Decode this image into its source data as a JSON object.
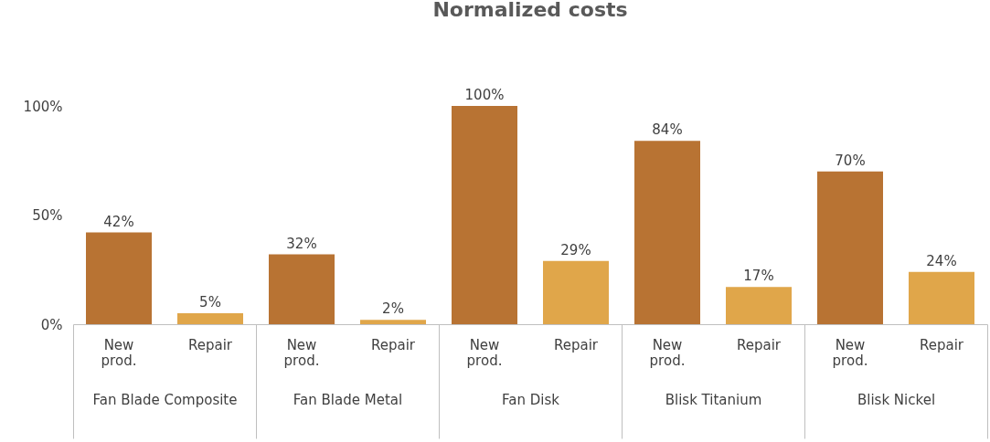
{
  "chart_data": {
    "type": "bar",
    "title": "Normalized costs",
    "categories": [
      "Fan Blade Composite",
      "Fan Blade Metal",
      "Fan Disk",
      "Blisk Titanium",
      "Blisk Nickel"
    ],
    "series": [
      {
        "name": "New prod.",
        "color": "#b87333",
        "values": [
          42,
          32,
          100,
          84,
          70
        ],
        "value_labels": [
          "42%",
          "32%",
          "100%",
          "84%",
          "70%"
        ]
      },
      {
        "name": "Repair",
        "color": "#e0a64a",
        "values": [
          5,
          2,
          29,
          17,
          24
        ],
        "value_labels": [
          "5%",
          "2%",
          "29%",
          "17%",
          "24%"
        ]
      }
    ],
    "ylim": [
      0,
      100
    ],
    "yticks": [
      {
        "value": 0,
        "label": "0%"
      },
      {
        "value": 50,
        "label": "50%"
      },
      {
        "value": 100,
        "label": "100%"
      }
    ],
    "grid": false,
    "legend": false
  }
}
